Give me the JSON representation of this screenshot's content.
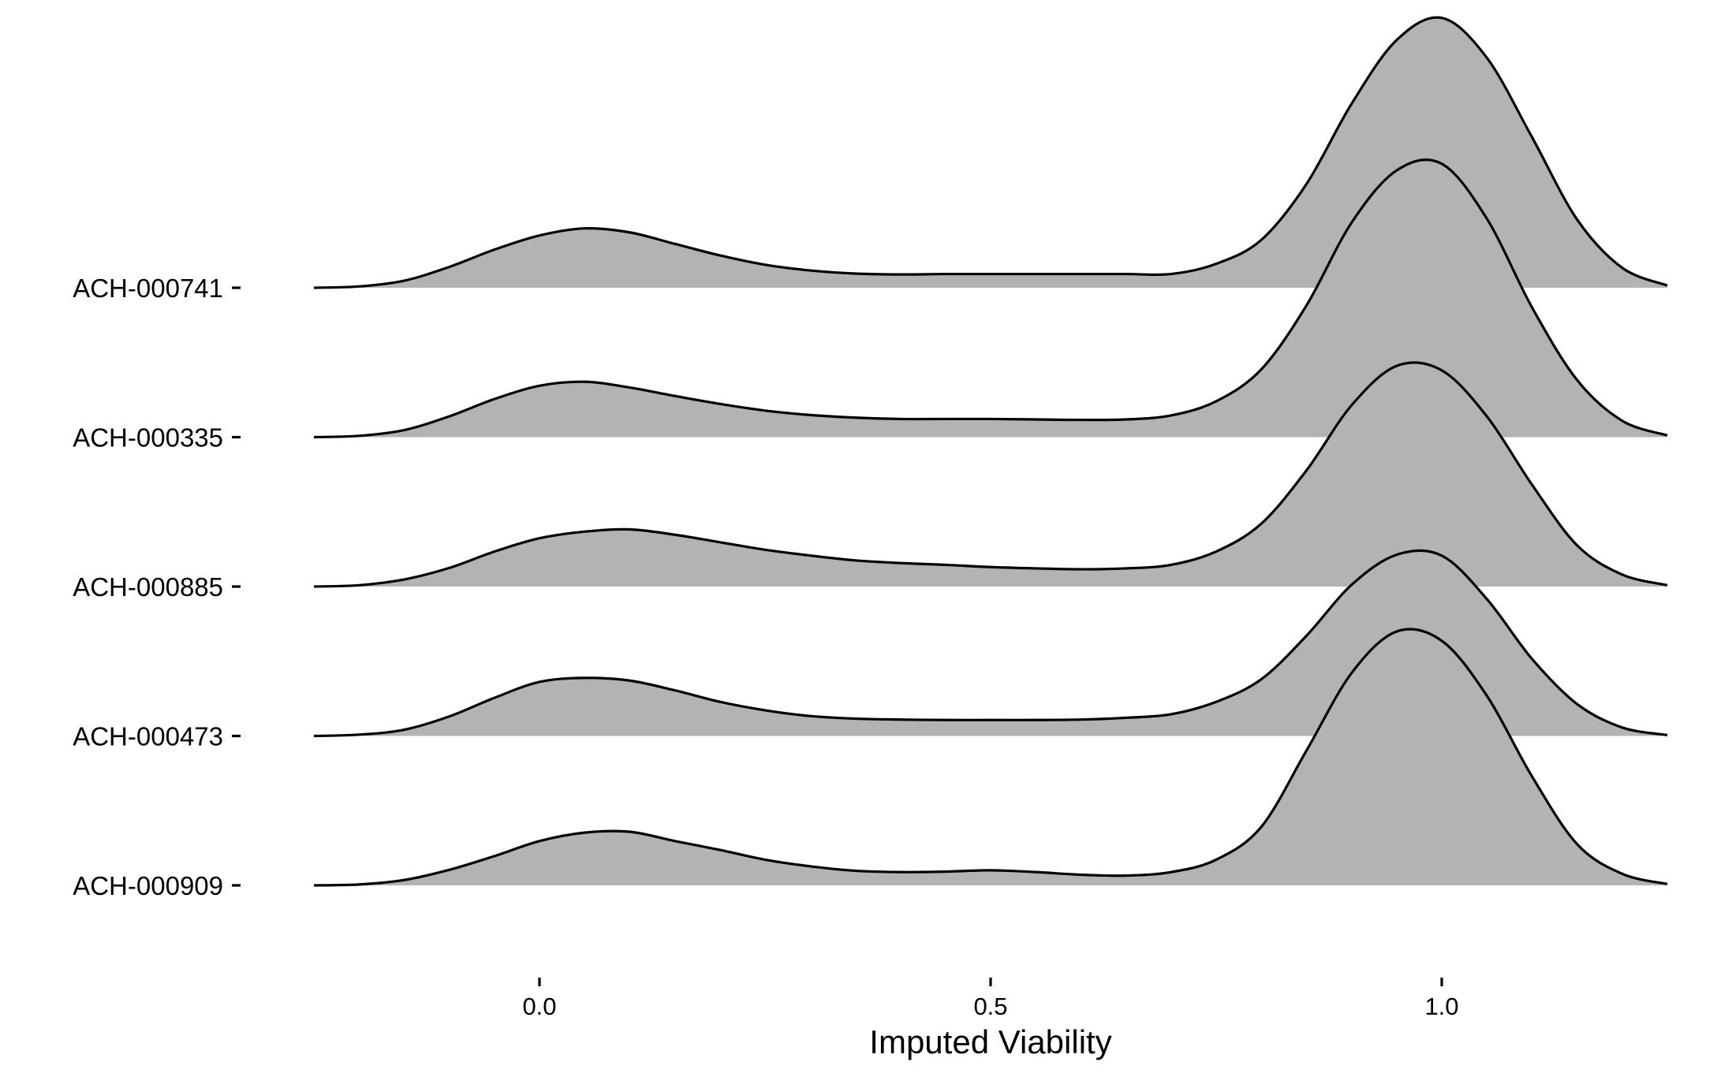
{
  "chart_data": {
    "type": "ridgeline",
    "title": "",
    "xlabel": "Imputed Viability",
    "ylabel": "",
    "xlim": [
      -0.255,
      1.25
    ],
    "x_ticks": [
      {
        "value": 0.0,
        "label": "0.0"
      },
      {
        "value": 0.5,
        "label": "0.5"
      },
      {
        "value": 1.0,
        "label": "1.0"
      }
    ],
    "grid": false,
    "legend": "none",
    "fill_color": "#b3b3b3",
    "line_color": "#000000",
    "x": [
      -0.25,
      -0.2,
      -0.15,
      -0.1,
      -0.05,
      0.0,
      0.05,
      0.1,
      0.15,
      0.2,
      0.25,
      0.3,
      0.35,
      0.4,
      0.45,
      0.5,
      0.55,
      0.6,
      0.65,
      0.7,
      0.75,
      0.8,
      0.85,
      0.9,
      0.95,
      1.0,
      1.05,
      1.1,
      1.15,
      1.2,
      1.25
    ],
    "series": [
      {
        "name": "ACH-000909",
        "values": [
          0.0,
          0.02,
          0.12,
          0.35,
          0.66,
          1.0,
          1.19,
          1.21,
          1.0,
          0.8,
          0.58,
          0.43,
          0.33,
          0.3,
          0.31,
          0.34,
          0.3,
          0.24,
          0.22,
          0.3,
          0.58,
          1.32,
          3.04,
          4.79,
          5.73,
          5.52,
          4.28,
          2.46,
          0.93,
          0.26,
          0.03
        ]
      },
      {
        "name": "ACH-000473",
        "values": [
          0.0,
          0.03,
          0.14,
          0.44,
          0.86,
          1.22,
          1.31,
          1.25,
          1.03,
          0.77,
          0.58,
          0.45,
          0.39,
          0.37,
          0.36,
          0.36,
          0.36,
          0.37,
          0.41,
          0.49,
          0.77,
          1.28,
          2.26,
          3.41,
          4.09,
          4.07,
          3.09,
          1.74,
          0.72,
          0.19,
          0.02
        ]
      },
      {
        "name": "ACH-000885",
        "values": [
          0.0,
          0.03,
          0.16,
          0.42,
          0.79,
          1.09,
          1.24,
          1.29,
          1.17,
          1.0,
          0.83,
          0.7,
          0.59,
          0.53,
          0.49,
          0.44,
          0.41,
          0.39,
          0.41,
          0.49,
          0.79,
          1.42,
          2.62,
          4.09,
          4.98,
          4.88,
          3.84,
          2.3,
          0.93,
          0.27,
          0.03
        ]
      },
      {
        "name": "ACH-000335",
        "values": [
          0.0,
          0.03,
          0.16,
          0.47,
          0.86,
          1.16,
          1.25,
          1.12,
          0.93,
          0.75,
          0.6,
          0.5,
          0.44,
          0.41,
          0.41,
          0.41,
          0.4,
          0.39,
          0.4,
          0.49,
          0.81,
          1.53,
          2.97,
          4.84,
          6.02,
          6.17,
          4.93,
          2.93,
          1.29,
          0.37,
          0.04
        ]
      },
      {
        "name": "ACH-000741",
        "values": [
          0.0,
          0.03,
          0.16,
          0.47,
          0.86,
          1.18,
          1.34,
          1.25,
          0.99,
          0.73,
          0.52,
          0.39,
          0.32,
          0.3,
          0.31,
          0.31,
          0.31,
          0.31,
          0.31,
          0.31,
          0.54,
          1.08,
          2.34,
          4.15,
          5.59,
          6.09,
          5.19,
          3.4,
          1.54,
          0.45,
          0.05
        ]
      }
    ]
  }
}
